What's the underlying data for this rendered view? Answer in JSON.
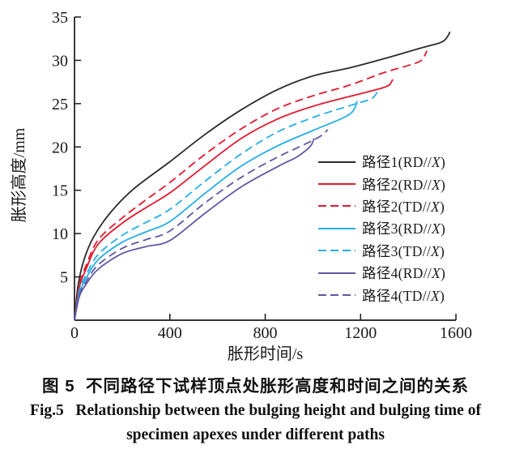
{
  "figure": {
    "caption_cn": "图 5  不同路径下试样顶点处胀形高度和时间之间的关系",
    "caption_en_line1": "Fig.5   Relationship between the bulging height and bulging time of",
    "caption_en_line2": "specimen apexes under different paths"
  },
  "colors": {
    "axis": "#1a1a1a",
    "black": "#2b2b2b",
    "red": "#e4182e",
    "cyan": "#25aee6",
    "purple": "#5f58a3"
  },
  "chart_data": {
    "type": "line",
    "title": "",
    "xlabel": "胀形时间/s",
    "ylabel": "胀形高度/mm",
    "xlim": [
      0,
      1600
    ],
    "ylim": [
      0,
      35
    ],
    "x_ticks": [
      0,
      400,
      800,
      1200,
      1600
    ],
    "y_ticks": [
      5,
      10,
      15,
      20,
      25,
      30,
      35
    ],
    "grid": false,
    "legend_position": "inside-right-middle",
    "series": [
      {
        "name": "路径1(RD//X)",
        "color": "#2b2b2b",
        "style": "solid",
        "points": [
          [
            0,
            0
          ],
          [
            15,
            4
          ],
          [
            40,
            7
          ],
          [
            80,
            9.6
          ],
          [
            150,
            12.4
          ],
          [
            250,
            15.2
          ],
          [
            400,
            18.3
          ],
          [
            550,
            21.5
          ],
          [
            700,
            24.3
          ],
          [
            850,
            26.6
          ],
          [
            1000,
            28.2
          ],
          [
            1150,
            29.1
          ],
          [
            1300,
            30.2
          ],
          [
            1450,
            31.4
          ],
          [
            1530,
            32.0
          ],
          [
            1555,
            32.4
          ],
          [
            1568,
            32.9
          ],
          [
            1575,
            33.3
          ]
        ]
      },
      {
        "name": "路径2(RD//X)",
        "color": "#e4182e",
        "style": "solid",
        "points": [
          [
            0,
            0
          ],
          [
            20,
            3.8
          ],
          [
            50,
            6.0
          ],
          [
            100,
            8.8
          ],
          [
            200,
            11.2
          ],
          [
            300,
            13.0
          ],
          [
            400,
            14.7
          ],
          [
            550,
            17.9
          ],
          [
            700,
            21.0
          ],
          [
            850,
            23.2
          ],
          [
            1000,
            24.7
          ],
          [
            1150,
            25.8
          ],
          [
            1250,
            26.5
          ],
          [
            1300,
            26.9
          ],
          [
            1322,
            27.2
          ],
          [
            1335,
            27.8
          ]
        ]
      },
      {
        "name": "路径2(TD//X)",
        "color": "#e4182e",
        "style": "dashed",
        "points": [
          [
            0,
            0
          ],
          [
            20,
            4.0
          ],
          [
            50,
            6.4
          ],
          [
            100,
            9.3
          ],
          [
            200,
            11.8
          ],
          [
            300,
            13.9
          ],
          [
            400,
            15.9
          ],
          [
            550,
            19.2
          ],
          [
            700,
            22.1
          ],
          [
            850,
            24.4
          ],
          [
            1000,
            25.9
          ],
          [
            1150,
            27.1
          ],
          [
            1300,
            28.6
          ],
          [
            1400,
            29.4
          ],
          [
            1450,
            29.9
          ],
          [
            1466,
            30.4
          ],
          [
            1478,
            31.1
          ]
        ]
      },
      {
        "name": "路径3(RD//X)",
        "color": "#25aee6",
        "style": "solid",
        "points": [
          [
            0,
            0
          ],
          [
            20,
            3.1
          ],
          [
            50,
            4.9
          ],
          [
            100,
            7.0
          ],
          [
            200,
            9.0
          ],
          [
            300,
            10.2
          ],
          [
            400,
            11.4
          ],
          [
            550,
            14.7
          ],
          [
            700,
            17.8
          ],
          [
            850,
            20.1
          ],
          [
            1000,
            21.9
          ],
          [
            1080,
            22.8
          ],
          [
            1130,
            23.4
          ],
          [
            1160,
            23.9
          ],
          [
            1176,
            24.5
          ],
          [
            1186,
            25.3
          ]
        ]
      },
      {
        "name": "路径3(TD//X)",
        "color": "#25aee6",
        "style": "dashed",
        "points": [
          [
            0,
            0
          ],
          [
            20,
            3.4
          ],
          [
            50,
            5.3
          ],
          [
            100,
            7.6
          ],
          [
            200,
            9.8
          ],
          [
            300,
            11.3
          ],
          [
            400,
            12.8
          ],
          [
            550,
            16.1
          ],
          [
            700,
            19.2
          ],
          [
            850,
            21.7
          ],
          [
            1000,
            23.4
          ],
          [
            1100,
            24.3
          ],
          [
            1182,
            25.0
          ],
          [
            1230,
            25.4
          ],
          [
            1256,
            25.8
          ],
          [
            1274,
            26.5
          ]
        ]
      },
      {
        "name": "路径4(RD//X)",
        "color": "#5f58a3",
        "style": "solid",
        "points": [
          [
            0,
            0
          ],
          [
            20,
            2.7
          ],
          [
            50,
            4.2
          ],
          [
            100,
            5.9
          ],
          [
            200,
            7.7
          ],
          [
            300,
            8.5
          ],
          [
            400,
            9.2
          ],
          [
            550,
            12.4
          ],
          [
            700,
            15.4
          ],
          [
            850,
            17.7
          ],
          [
            930,
            18.8
          ],
          [
            975,
            19.7
          ],
          [
            995,
            20.3
          ],
          [
            1005,
            21.0
          ]
        ]
      },
      {
        "name": "路径4(TD//X)",
        "color": "#5f58a3",
        "style": "dashed",
        "points": [
          [
            0,
            0
          ],
          [
            20,
            2.9
          ],
          [
            50,
            4.5
          ],
          [
            100,
            6.4
          ],
          [
            200,
            8.3
          ],
          [
            300,
            9.3
          ],
          [
            400,
            10.3
          ],
          [
            550,
            13.6
          ],
          [
            700,
            16.5
          ],
          [
            850,
            18.8
          ],
          [
            950,
            20.1
          ],
          [
            1010,
            20.9
          ],
          [
            1040,
            21.4
          ],
          [
            1063,
            22.0
          ]
        ]
      }
    ]
  }
}
